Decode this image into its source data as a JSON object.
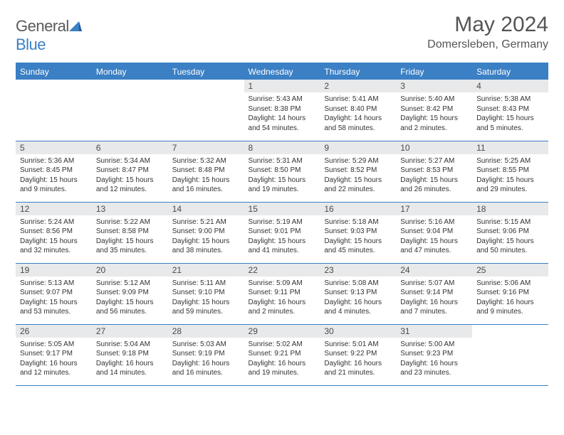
{
  "brand": {
    "name_part1": "General",
    "name_part2": "Blue"
  },
  "title": "May 2024",
  "subtitle": "Domersleben, Germany",
  "colors": {
    "accent": "#3b7fc4",
    "daynum_bg": "#e8e9ea",
    "text": "#333333",
    "title_text": "#555555"
  },
  "days_of_week": [
    "Sunday",
    "Monday",
    "Tuesday",
    "Wednesday",
    "Thursday",
    "Friday",
    "Saturday"
  ],
  "weeks": [
    [
      null,
      null,
      null,
      {
        "n": "1",
        "sr": "Sunrise: 5:43 AM",
        "ss": "Sunset: 8:38 PM",
        "dl": "Daylight: 14 hours and 54 minutes."
      },
      {
        "n": "2",
        "sr": "Sunrise: 5:41 AM",
        "ss": "Sunset: 8:40 PM",
        "dl": "Daylight: 14 hours and 58 minutes."
      },
      {
        "n": "3",
        "sr": "Sunrise: 5:40 AM",
        "ss": "Sunset: 8:42 PM",
        "dl": "Daylight: 15 hours and 2 minutes."
      },
      {
        "n": "4",
        "sr": "Sunrise: 5:38 AM",
        "ss": "Sunset: 8:43 PM",
        "dl": "Daylight: 15 hours and 5 minutes."
      }
    ],
    [
      {
        "n": "5",
        "sr": "Sunrise: 5:36 AM",
        "ss": "Sunset: 8:45 PM",
        "dl": "Daylight: 15 hours and 9 minutes."
      },
      {
        "n": "6",
        "sr": "Sunrise: 5:34 AM",
        "ss": "Sunset: 8:47 PM",
        "dl": "Daylight: 15 hours and 12 minutes."
      },
      {
        "n": "7",
        "sr": "Sunrise: 5:32 AM",
        "ss": "Sunset: 8:48 PM",
        "dl": "Daylight: 15 hours and 16 minutes."
      },
      {
        "n": "8",
        "sr": "Sunrise: 5:31 AM",
        "ss": "Sunset: 8:50 PM",
        "dl": "Daylight: 15 hours and 19 minutes."
      },
      {
        "n": "9",
        "sr": "Sunrise: 5:29 AM",
        "ss": "Sunset: 8:52 PM",
        "dl": "Daylight: 15 hours and 22 minutes."
      },
      {
        "n": "10",
        "sr": "Sunrise: 5:27 AM",
        "ss": "Sunset: 8:53 PM",
        "dl": "Daylight: 15 hours and 26 minutes."
      },
      {
        "n": "11",
        "sr": "Sunrise: 5:25 AM",
        "ss": "Sunset: 8:55 PM",
        "dl": "Daylight: 15 hours and 29 minutes."
      }
    ],
    [
      {
        "n": "12",
        "sr": "Sunrise: 5:24 AM",
        "ss": "Sunset: 8:56 PM",
        "dl": "Daylight: 15 hours and 32 minutes."
      },
      {
        "n": "13",
        "sr": "Sunrise: 5:22 AM",
        "ss": "Sunset: 8:58 PM",
        "dl": "Daylight: 15 hours and 35 minutes."
      },
      {
        "n": "14",
        "sr": "Sunrise: 5:21 AM",
        "ss": "Sunset: 9:00 PM",
        "dl": "Daylight: 15 hours and 38 minutes."
      },
      {
        "n": "15",
        "sr": "Sunrise: 5:19 AM",
        "ss": "Sunset: 9:01 PM",
        "dl": "Daylight: 15 hours and 41 minutes."
      },
      {
        "n": "16",
        "sr": "Sunrise: 5:18 AM",
        "ss": "Sunset: 9:03 PM",
        "dl": "Daylight: 15 hours and 45 minutes."
      },
      {
        "n": "17",
        "sr": "Sunrise: 5:16 AM",
        "ss": "Sunset: 9:04 PM",
        "dl": "Daylight: 15 hours and 47 minutes."
      },
      {
        "n": "18",
        "sr": "Sunrise: 5:15 AM",
        "ss": "Sunset: 9:06 PM",
        "dl": "Daylight: 15 hours and 50 minutes."
      }
    ],
    [
      {
        "n": "19",
        "sr": "Sunrise: 5:13 AM",
        "ss": "Sunset: 9:07 PM",
        "dl": "Daylight: 15 hours and 53 minutes."
      },
      {
        "n": "20",
        "sr": "Sunrise: 5:12 AM",
        "ss": "Sunset: 9:09 PM",
        "dl": "Daylight: 15 hours and 56 minutes."
      },
      {
        "n": "21",
        "sr": "Sunrise: 5:11 AM",
        "ss": "Sunset: 9:10 PM",
        "dl": "Daylight: 15 hours and 59 minutes."
      },
      {
        "n": "22",
        "sr": "Sunrise: 5:09 AM",
        "ss": "Sunset: 9:11 PM",
        "dl": "Daylight: 16 hours and 2 minutes."
      },
      {
        "n": "23",
        "sr": "Sunrise: 5:08 AM",
        "ss": "Sunset: 9:13 PM",
        "dl": "Daylight: 16 hours and 4 minutes."
      },
      {
        "n": "24",
        "sr": "Sunrise: 5:07 AM",
        "ss": "Sunset: 9:14 PM",
        "dl": "Daylight: 16 hours and 7 minutes."
      },
      {
        "n": "25",
        "sr": "Sunrise: 5:06 AM",
        "ss": "Sunset: 9:16 PM",
        "dl": "Daylight: 16 hours and 9 minutes."
      }
    ],
    [
      {
        "n": "26",
        "sr": "Sunrise: 5:05 AM",
        "ss": "Sunset: 9:17 PM",
        "dl": "Daylight: 16 hours and 12 minutes."
      },
      {
        "n": "27",
        "sr": "Sunrise: 5:04 AM",
        "ss": "Sunset: 9:18 PM",
        "dl": "Daylight: 16 hours and 14 minutes."
      },
      {
        "n": "28",
        "sr": "Sunrise: 5:03 AM",
        "ss": "Sunset: 9:19 PM",
        "dl": "Daylight: 16 hours and 16 minutes."
      },
      {
        "n": "29",
        "sr": "Sunrise: 5:02 AM",
        "ss": "Sunset: 9:21 PM",
        "dl": "Daylight: 16 hours and 19 minutes."
      },
      {
        "n": "30",
        "sr": "Sunrise: 5:01 AM",
        "ss": "Sunset: 9:22 PM",
        "dl": "Daylight: 16 hours and 21 minutes."
      },
      {
        "n": "31",
        "sr": "Sunrise: 5:00 AM",
        "ss": "Sunset: 9:23 PM",
        "dl": "Daylight: 16 hours and 23 minutes."
      },
      null
    ]
  ]
}
